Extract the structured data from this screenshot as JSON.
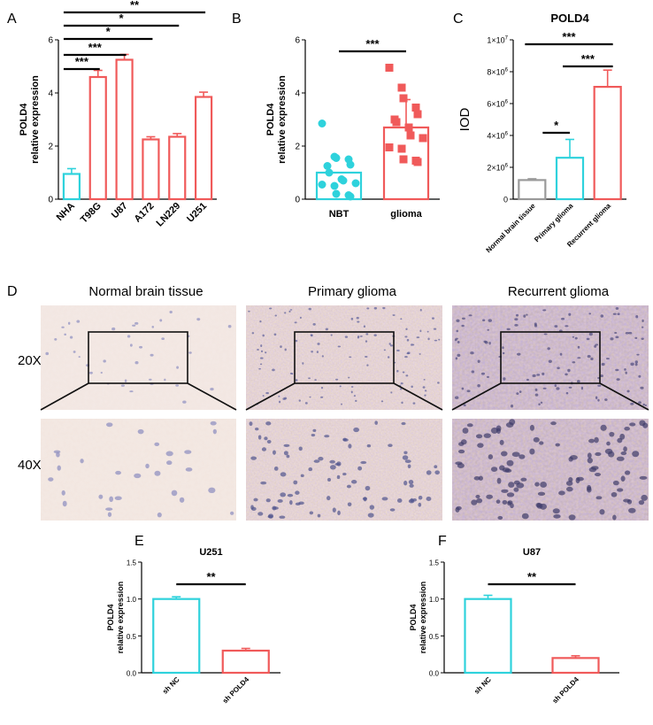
{
  "colors": {
    "cyan": "#2ed2dc",
    "red": "#f05a5a",
    "gray": "#9a9a9a",
    "black": "#000000",
    "stain_bg": "#efe3dd"
  },
  "chart_data": [
    {
      "panel": "A",
      "type": "bar",
      "title": "",
      "ylabel_line1": "POLD4",
      "ylabel_line2": "relative expression",
      "categories": [
        "NHA",
        "T98G",
        "U87",
        "A172",
        "LN229",
        "U251"
      ],
      "values": [
        0.95,
        4.6,
        5.25,
        2.25,
        2.35,
        3.85
      ],
      "errors": [
        0.2,
        0.25,
        0.2,
        0.1,
        0.12,
        0.18
      ],
      "bar_colors": [
        "cyan",
        "red",
        "red",
        "red",
        "red",
        "red"
      ],
      "ylim": [
        0,
        6
      ],
      "yticks": [
        "0",
        "2",
        "4",
        "6"
      ],
      "significance": [
        {
          "from": 0,
          "to": 1,
          "label": "***"
        },
        {
          "from": 0,
          "to": 2,
          "label": "***"
        },
        {
          "from": 0,
          "to": 3,
          "label": "*"
        },
        {
          "from": 0,
          "to": 4,
          "label": "*"
        },
        {
          "from": 0,
          "to": 5,
          "label": "**"
        }
      ]
    },
    {
      "panel": "B",
      "type": "bar+scatter",
      "ylabel_line1": "POLD4",
      "ylabel_line2": "relative expression",
      "categories": [
        "NBT",
        "glioma"
      ],
      "values": [
        1.0,
        2.7
      ],
      "errors": [
        0.0,
        1.05
      ],
      "bar_colors": [
        "cyan",
        "red"
      ],
      "points": [
        [
          2.85,
          1.6,
          1.55,
          1.5,
          1.3,
          1.25,
          1.0,
          0.75,
          0.7,
          0.6,
          0.55,
          0.5,
          0.2,
          0.15,
          0.1
        ],
        [
          4.95,
          4.2,
          3.8,
          3.45,
          3.2,
          3.0,
          2.9,
          2.7,
          2.4,
          2.3,
          1.95,
          1.9,
          1.5,
          1.45,
          1.4
        ]
      ],
      "ylim": [
        0,
        6
      ],
      "yticks": [
        "0",
        "2",
        "4",
        "6"
      ],
      "significance": [
        {
          "from": 0,
          "to": 1,
          "label": "***"
        }
      ]
    },
    {
      "panel": "C",
      "type": "bar",
      "title": "POLD4",
      "ylabel": "IOD",
      "categories": [
        "Normal brain tissue",
        "Primary glioma",
        "Recurrent glioma"
      ],
      "values": [
        1200000,
        2600000,
        7050000
      ],
      "errors": [
        80000,
        1150000,
        1050000
      ],
      "bar_colors": [
        "gray",
        "cyan",
        "red"
      ],
      "ylim": [
        0,
        10000000
      ],
      "yticks": [
        {
          "base": "0",
          "exp": ""
        },
        {
          "base": "2×10",
          "exp": "6"
        },
        {
          "base": "4×10",
          "exp": "6"
        },
        {
          "base": "6×10",
          "exp": "6"
        },
        {
          "base": "8×10",
          "exp": "6"
        },
        {
          "base": "1×10",
          "exp": "7"
        }
      ],
      "significance": [
        {
          "from": 0,
          "to": 1,
          "label": "*"
        },
        {
          "from": 1,
          "to": 2,
          "label": "***"
        },
        {
          "from": 0,
          "to": 2,
          "label": "***"
        }
      ]
    },
    {
      "panel": "E",
      "type": "bar",
      "title": "U251",
      "ylabel_line1": "POLD4",
      "ylabel_line2": "relative expression",
      "categories": [
        "sh NC",
        "sh POLD4"
      ],
      "values": [
        1.0,
        0.3
      ],
      "errors": [
        0.03,
        0.03
      ],
      "bar_colors": [
        "cyan",
        "red"
      ],
      "ylim": [
        0,
        1.5
      ],
      "yticks": [
        "0.0",
        "0.5",
        "1.0",
        "1.5"
      ],
      "significance": [
        {
          "from": 0,
          "to": 1,
          "label": "**"
        }
      ]
    },
    {
      "panel": "F",
      "type": "bar",
      "title": "U87",
      "ylabel_line1": "POLD4",
      "ylabel_line2": "relative expression",
      "categories": [
        "sh NC",
        "sh POLD4"
      ],
      "values": [
        1.0,
        0.2
      ],
      "errors": [
        0.05,
        0.03
      ],
      "bar_colors": [
        "cyan",
        "red"
      ],
      "ylim": [
        0,
        1.5
      ],
      "yticks": [
        "0.0",
        "0.5",
        "1.0",
        "1.5"
      ],
      "significance": [
        {
          "from": 0,
          "to": 1,
          "label": "**"
        }
      ]
    }
  ],
  "panelD": {
    "letter": "D",
    "columns": [
      "Normal brain tissue",
      "Primary glioma",
      "Recurrent glioma"
    ],
    "rows": [
      "20X",
      "40X"
    ]
  }
}
